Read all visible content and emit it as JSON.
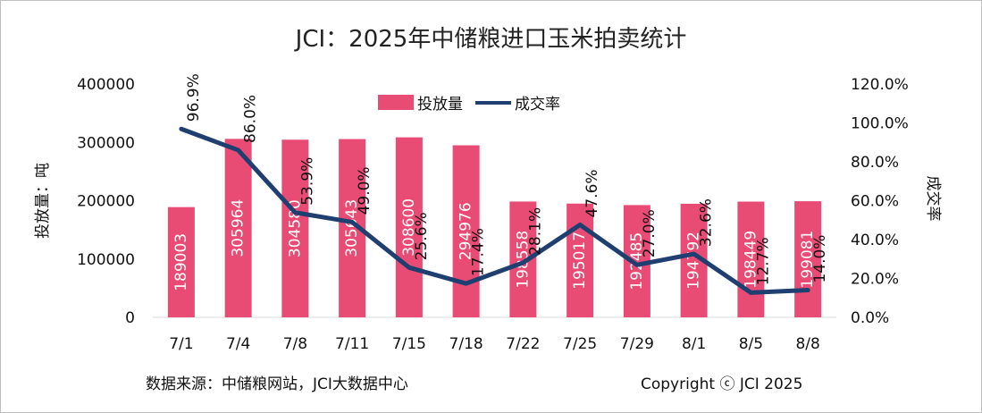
{
  "chart_data": {
    "type": "bar+line",
    "title": "JCI：2025年中储粮进口玉米拍卖统计",
    "categories": [
      "7/1",
      "7/4",
      "7/8",
      "7/11",
      "7/15",
      "7/18",
      "7/22",
      "7/25",
      "7/29",
      "8/1",
      "8/5",
      "8/8"
    ],
    "series": [
      {
        "name": "投放量",
        "kind": "bar",
        "axis": "left",
        "color": "#e84c74",
        "values": [
          189003,
          305964,
          304580,
          305643,
          308600,
          294976,
          198558,
          195017,
          192485,
          194792,
          198449,
          199081
        ],
        "data_labels": [
          "189003",
          "305964",
          "304580",
          "305643",
          "308600",
          "294976",
          "198558",
          "195017",
          "192485",
          "194792",
          "198449",
          "199081"
        ]
      },
      {
        "name": "成交率",
        "kind": "line",
        "axis": "right",
        "color": "#1f3f70",
        "values": [
          96.9,
          86.0,
          53.9,
          49.0,
          25.6,
          17.4,
          28.1,
          47.6,
          27.0,
          32.6,
          12.7,
          14.0
        ],
        "data_labels": [
          "96.9%",
          "86.0%",
          "53.9%",
          "49.0%",
          "25.6%",
          "17.4%",
          "28.1%",
          "47.6%",
          "27.0%",
          "32.6%",
          "12.7%",
          "14.0%"
        ]
      }
    ],
    "ylabel": "投放量：吨",
    "y2label": "成交率",
    "ylim": [
      0,
      400000
    ],
    "y2lim": [
      0,
      120
    ],
    "yticks": [
      "0",
      "100000",
      "200000",
      "300000",
      "400000"
    ],
    "y2ticks": [
      "0.0%",
      "20.0%",
      "40.0%",
      "60.0%",
      "80.0%",
      "100.0%",
      "120.0%"
    ],
    "legend_position": "top-center",
    "grid": false
  },
  "footer": {
    "source": "数据来源：中储粮网站，JCI大数据中心",
    "copyright": "Copyright ⓒ JCI 2025"
  }
}
